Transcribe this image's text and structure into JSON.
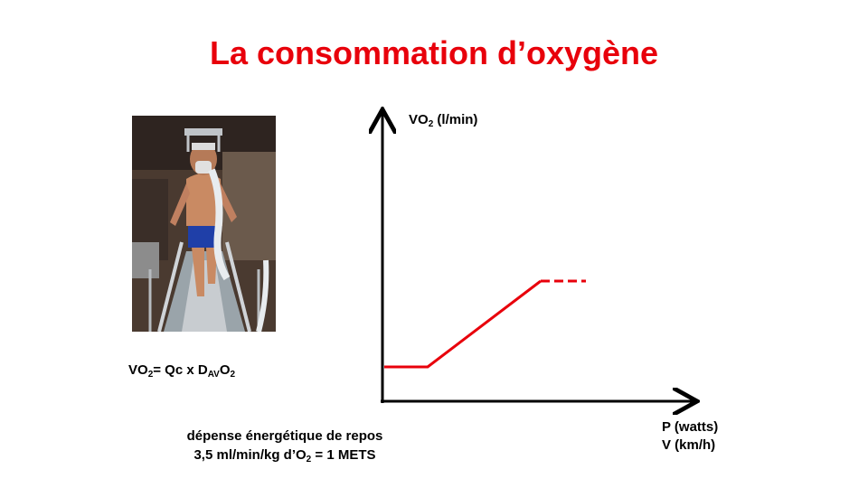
{
  "slide": {
    "title": "La consommation d’oxygène"
  },
  "formula": {
    "vo": "VO",
    "vo_sub": "2",
    "equals": "= Qc x D",
    "d_sub": "AV",
    "o": "O",
    "o_sub": "2"
  },
  "resting": {
    "line1": "dépense énergétique de repos",
    "line2_pre": "3,5 ml/min/kg d’O",
    "line2_sub": "2",
    "line2_post": " = 1 METS"
  },
  "chart_data": {
    "type": "line",
    "y_axis_label": {
      "main": "VO",
      "sub": "2",
      "rest": " (l/min)"
    },
    "x_axis_labels": [
      "P (watts)",
      "V (km/h)"
    ],
    "colors": {
      "curve": "#e8000b",
      "axes": "#000000",
      "title": "#e8000b"
    }
  },
  "photo": {
    "icon": "treadmill-athlete-photo"
  }
}
